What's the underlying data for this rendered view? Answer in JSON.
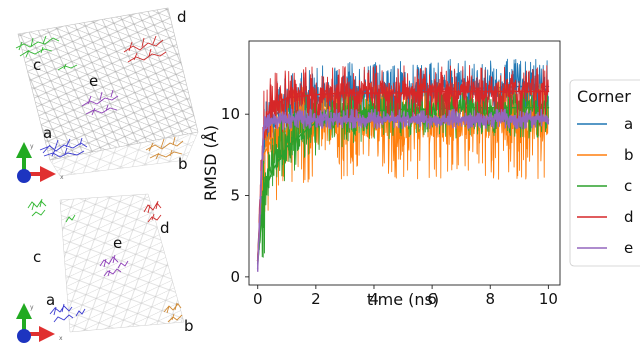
{
  "structure_panels": {
    "top": {
      "labels": [
        {
          "key": "a",
          "text": "a"
        },
        {
          "key": "b",
          "text": "b"
        },
        {
          "key": "c",
          "text": "c"
        },
        {
          "key": "d",
          "text": "d"
        },
        {
          "key": "e",
          "text": "e"
        }
      ],
      "axes_triad": {
        "x": "x",
        "y": "y"
      }
    },
    "bottom": {
      "labels": [
        {
          "key": "a",
          "text": "a"
        },
        {
          "key": "b",
          "text": "b"
        },
        {
          "key": "c",
          "text": "c"
        },
        {
          "key": "d",
          "text": "d"
        },
        {
          "key": "e",
          "text": "e"
        }
      ],
      "axes_triad": {
        "x": "x",
        "y": "y"
      }
    },
    "colors": {
      "a": "#3a3ad0",
      "b": "#d08a35",
      "c": "#33b833",
      "d": "#cc2a2a",
      "e": "#8e3fb8"
    }
  },
  "chart_data": {
    "type": "line",
    "xlabel": "time (ns)",
    "ylabel": "RMSD (Å)",
    "xlim": [
      -0.3,
      10.4
    ],
    "ylim": [
      -0.5,
      14.5
    ],
    "xticks": [
      0,
      2,
      4,
      6,
      8,
      10
    ],
    "yticks": [
      0,
      5,
      10
    ],
    "grid": false,
    "legend": {
      "title": "Corner",
      "placement": "right-outside"
    },
    "series": [
      {
        "name": "a",
        "color": "#1f77b4",
        "x": [
          0,
          0.2,
          0.5,
          1,
          2,
          3,
          4,
          5,
          6,
          7,
          8,
          9,
          10
        ],
        "y": [
          1.0,
          8.0,
          9.8,
          10.5,
          11.0,
          11.2,
          11.3,
          11.4,
          11.5,
          11.6,
          11.6,
          11.7,
          11.7
        ],
        "y_low": [
          0.5,
          6.0,
          8.0,
          8.5,
          9.0,
          9.2,
          9.4,
          9.5,
          9.6,
          9.6,
          9.7,
          9.7,
          9.7
        ],
        "y_high": [
          2.0,
          10.5,
          12.0,
          12.5,
          13.0,
          13.2,
          13.3,
          13.3,
          13.4,
          13.4,
          13.4,
          13.4,
          13.4
        ]
      },
      {
        "name": "b",
        "color": "#ff7f0e",
        "x": [
          0,
          0.2,
          0.5,
          1,
          2,
          3,
          4,
          5,
          6,
          7,
          8,
          9,
          10
        ],
        "y": [
          1.0,
          7.5,
          8.5,
          9.0,
          9.3,
          9.5,
          9.5,
          9.5,
          9.6,
          9.6,
          9.6,
          9.6,
          9.6
        ],
        "y_low": [
          0.5,
          3.5,
          4.0,
          5.0,
          6.0,
          6.0,
          6.0,
          6.0,
          6.0,
          6.0,
          6.0,
          6.0,
          6.0
        ],
        "y_high": [
          2.0,
          10.0,
          11.0,
          11.5,
          12.0,
          12.0,
          12.0,
          12.0,
          12.0,
          12.0,
          12.0,
          12.0,
          12.0
        ]
      },
      {
        "name": "c",
        "color": "#2ca02c",
        "x": [
          0,
          0.2,
          0.5,
          1,
          2,
          3,
          4,
          5,
          6,
          7,
          8,
          9,
          10
        ],
        "y": [
          0.8,
          5.0,
          6.5,
          8.0,
          9.5,
          10.0,
          10.2,
          10.3,
          10.3,
          10.4,
          10.4,
          10.4,
          10.4
        ],
        "y_low": [
          0.5,
          1.0,
          4.5,
          6.0,
          7.5,
          8.0,
          8.5,
          8.5,
          8.5,
          8.5,
          8.5,
          8.5,
          8.5
        ],
        "y_high": [
          1.5,
          8.0,
          9.5,
          11.0,
          11.5,
          11.5,
          11.5,
          11.5,
          11.5,
          11.5,
          11.5,
          11.5,
          11.5
        ]
      },
      {
        "name": "d",
        "color": "#d62728",
        "x": [
          0,
          0.2,
          0.5,
          1,
          2,
          3,
          4,
          5,
          6,
          7,
          8,
          9,
          10
        ],
        "y": [
          1.0,
          9.0,
          10.5,
          11.0,
          11.2,
          11.3,
          11.3,
          11.3,
          11.4,
          11.4,
          11.4,
          11.4,
          11.4
        ],
        "y_low": [
          0.5,
          7.5,
          8.5,
          9.0,
          9.2,
          9.3,
          9.3,
          9.3,
          9.3,
          9.3,
          9.3,
          9.3,
          9.3
        ],
        "y_high": [
          2.0,
          11.5,
          12.5,
          12.8,
          13.0,
          13.0,
          13.0,
          13.0,
          13.0,
          13.0,
          13.0,
          13.0,
          13.0
        ]
      },
      {
        "name": "e",
        "color": "#9467bd",
        "x": [
          0,
          0.2,
          0.5,
          1,
          2,
          3,
          4,
          5,
          6,
          7,
          8,
          9,
          10
        ],
        "y": [
          0.5,
          9.0,
          9.6,
          9.7,
          9.7,
          9.7,
          9.7,
          9.7,
          9.7,
          9.7,
          9.7,
          9.7,
          9.7
        ],
        "y_low": [
          0.3,
          8.0,
          9.0,
          9.1,
          9.1,
          9.1,
          9.1,
          9.1,
          9.1,
          9.1,
          9.1,
          9.1,
          9.1
        ],
        "y_high": [
          1.0,
          10.0,
          10.2,
          10.3,
          10.3,
          10.3,
          10.3,
          10.3,
          10.3,
          10.3,
          10.3,
          10.3,
          10.3
        ]
      }
    ]
  }
}
